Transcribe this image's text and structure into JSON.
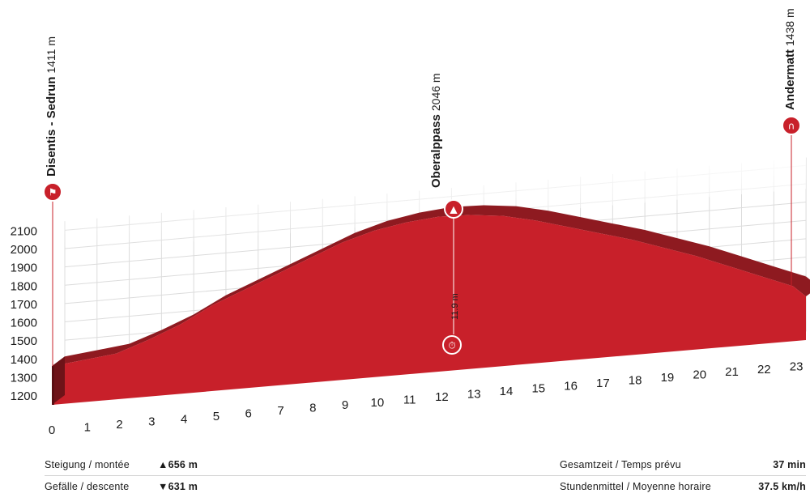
{
  "chart_data": {
    "type": "area",
    "title": "",
    "xlabel": "",
    "ylabel": "",
    "x_ticks": [
      "0",
      "1",
      "2",
      "3",
      "4",
      "5",
      "6",
      "7",
      "8",
      "9",
      "10",
      "11",
      "12",
      "13",
      "14",
      "15",
      "16",
      "17",
      "18",
      "19",
      "20",
      "21",
      "22",
      "23"
    ],
    "y_ticks": [
      "1200",
      "1300",
      "1400",
      "1500",
      "1600",
      "1700",
      "1800",
      "1900",
      "2000",
      "2100"
    ],
    "xlim": [
      0,
      23.4
    ],
    "ylim": [
      1200,
      2100
    ],
    "grid": true,
    "color": "#c8202a",
    "x": [
      0,
      1,
      2,
      3,
      4,
      5,
      6,
      7,
      8,
      9,
      10,
      11,
      12,
      13,
      14,
      15,
      16,
      17,
      18,
      19,
      20,
      21,
      22,
      23,
      23.4
    ],
    "y": [
      1411,
      1430,
      1450,
      1510,
      1580,
      1670,
      1740,
      1810,
      1880,
      1950,
      2000,
      2030,
      2046,
      2040,
      2020,
      1980,
      1930,
      1880,
      1830,
      1770,
      1710,
      1640,
      1570,
      1500,
      1438
    ],
    "waypoints": [
      {
        "name": "Disentis - Sedrun",
        "altitude": "1411 m",
        "km": 0,
        "icon": "start-flag-icon"
      },
      {
        "name": "Oberalppass",
        "altitude": "2046 m",
        "km": 12.1,
        "icon": "mountain-icon"
      },
      {
        "name": "Andermatt",
        "altitude": "1438 m",
        "km": 23.4,
        "icon": "finish-icon"
      }
    ],
    "intermediate": {
      "label": "11.9 m",
      "km": 12.1,
      "icon": "stopwatch-icon"
    }
  },
  "stats": {
    "climb_label": "Steigung / montée",
    "climb_value": "▲656 m",
    "descent_label": "Gefälle / descente",
    "descent_value": "▼631 m",
    "time_label": "Gesamtzeit / Temps prévu",
    "time_value": "37 min",
    "speed_label": "Stundenmittel / Moyenne horaire",
    "speed_value": "37.5 km/h"
  }
}
